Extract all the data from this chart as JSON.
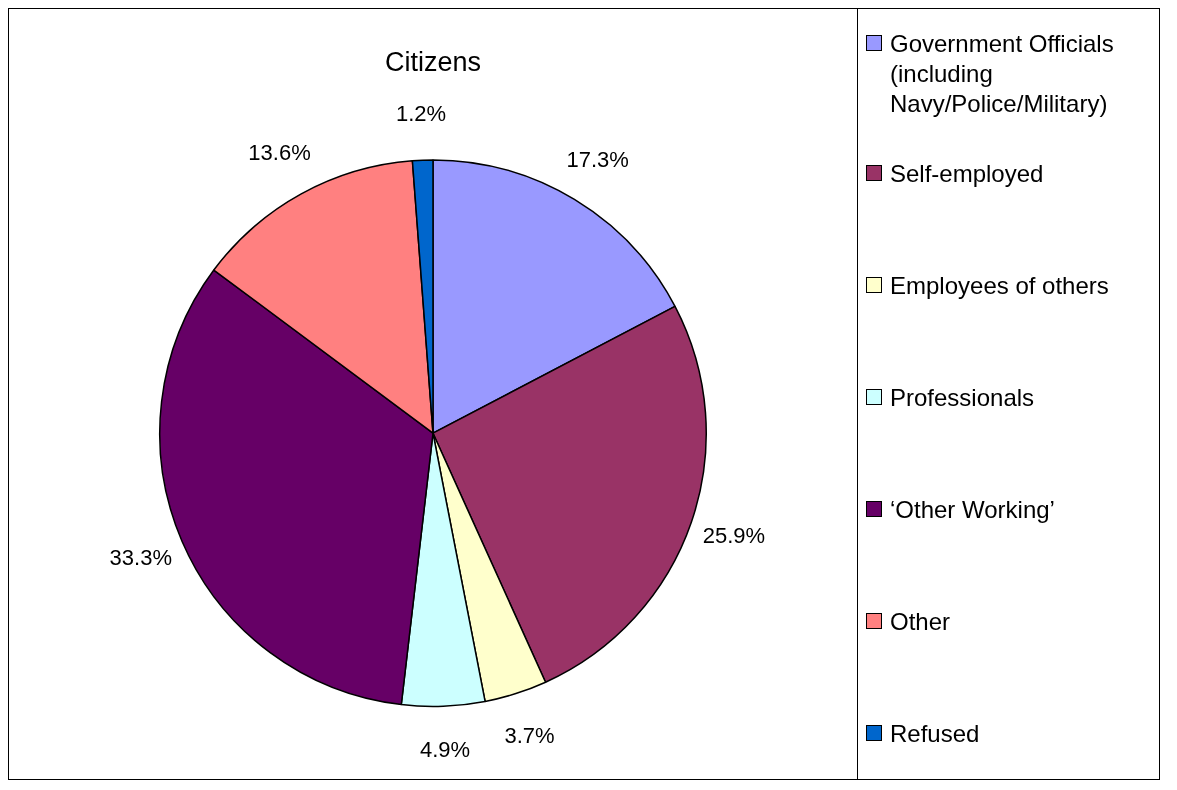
{
  "chart_data": {
    "type": "pie",
    "title": "Citizens",
    "categories": [
      "Government Officials (including Navy/Police/Military)",
      "Self-employed",
      "Employees of others",
      "Professionals",
      "‘Other Working’",
      "Other",
      "Refused"
    ],
    "values": [
      17.3,
      25.9,
      3.7,
      4.9,
      33.3,
      13.6,
      1.2
    ],
    "colors": [
      "#9999ff",
      "#993366",
      "#ffffcc",
      "#ccffff",
      "#660066",
      "#ff8080",
      "#0066cc"
    ],
    "value_labels": [
      "17.3%",
      "25.9%",
      "3.7%",
      "4.9%",
      "33.3%",
      "13.6%",
      "1.2%"
    ],
    "legend": "right"
  }
}
